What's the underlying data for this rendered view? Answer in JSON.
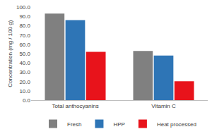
{
  "chart_data": {
    "type": "bar",
    "y_label": "Concentration (mg / 100 g)",
    "categories": [
      "Total anthocyanins",
      "Vitamin C"
    ],
    "series": [
      {
        "name": "Fresh",
        "color": "#808080",
        "values": [
          93,
          53
        ]
      },
      {
        "name": "HPP",
        "color": "#2e75b6",
        "values": [
          86,
          48
        ]
      },
      {
        "name": "Heat processed",
        "color": "#e8131b",
        "values": [
          52,
          20.5
        ]
      }
    ],
    "ylim": [
      0,
      100
    ],
    "yticks": [
      {
        "value": 0,
        "label": "0.0"
      },
      {
        "value": 10,
        "label": "10.0"
      },
      {
        "value": 20,
        "label": "20.0"
      },
      {
        "value": 30,
        "label": "30.0"
      },
      {
        "value": 40,
        "label": "40.0"
      },
      {
        "value": 50,
        "label": "50.0"
      },
      {
        "value": 60,
        "label": "60.0"
      },
      {
        "value": 70,
        "label": "70.0"
      },
      {
        "value": 80,
        "label": "80.0"
      },
      {
        "value": 90,
        "label": "90.0"
      },
      {
        "value": 100,
        "label": "100.0"
      }
    ],
    "grid": false,
    "legend": "bottom"
  }
}
